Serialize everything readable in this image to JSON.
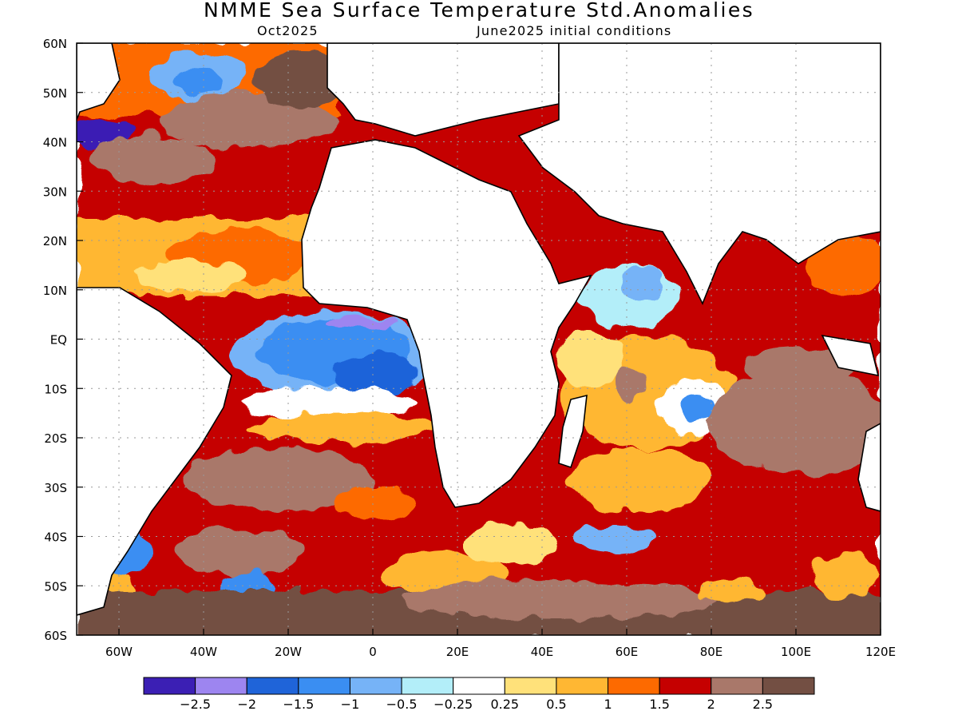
{
  "title": "NMME Sea Surface Temperature Std.Anomalies",
  "subtitle_left": "Oct2025",
  "subtitle_right": "June2025 initial conditions",
  "lat_labels": [
    "60N",
    "50N",
    "40N",
    "30N",
    "20N",
    "10N",
    "EQ",
    "10S",
    "20S",
    "30S",
    "40S",
    "50S",
    "60S"
  ],
  "lon_labels": [
    "60W",
    "40W",
    "20W",
    "0",
    "20E",
    "40E",
    "60E",
    "80E",
    "100E",
    "120E"
  ],
  "colorbar": {
    "colors": [
      "#3b1fb4",
      "#9d85f0",
      "#1f64d9",
      "#3a8ef2",
      "#76b3f7",
      "#b3eef9",
      "#ffffff",
      "#ffe17a",
      "#ffb733",
      "#fd6a00",
      "#c50000",
      "#a9786a",
      "#734f43"
    ],
    "labels": [
      "−2.5",
      "−2",
      "−1.5",
      "−1",
      "−0.5",
      "−0.25",
      "0.25",
      "0.5",
      "1",
      "1.5",
      "2",
      "2.5"
    ]
  },
  "map": {
    "lon_range": [
      -70,
      120
    ],
    "lat_range": [
      -60,
      60
    ],
    "grid_lines": true
  }
}
